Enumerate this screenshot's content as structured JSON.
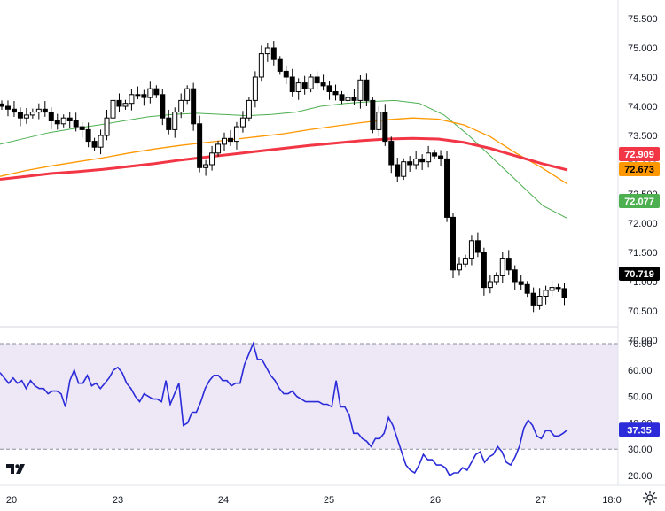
{
  "brand": "TV",
  "time_axis": {
    "labels": [
      "20",
      "23",
      "24",
      "25",
      "26",
      "27",
      "18:0"
    ]
  },
  "settings_icon": "gear-icon",
  "colors": {
    "bull": "#ffffff",
    "bear": "#000000",
    "ma_fast": "#4caf50",
    "ma_mid": "#ff9800",
    "ma_slow": "#f23645",
    "rsi": "#2b2bd9",
    "rsi_band": "#ede7f6",
    "last_price": "#000000"
  },
  "chart_data": [
    {
      "type": "candlestick",
      "title": "",
      "ylim": [
        69.8,
        75.7
      ],
      "y_ticks": [
        "75.500",
        "75.000",
        "74.500",
        "74.000",
        "73.500",
        "73.000",
        "72.500",
        "72.000",
        "71.500",
        "71.000",
        "70.500",
        "70.000"
      ],
      "x_labels": [
        "20",
        "23",
        "24",
        "25",
        "26",
        "27",
        "18:0"
      ],
      "grid": false,
      "legend": "none",
      "candles_close": [
        74.0,
        73.95,
        73.9,
        73.8,
        73.85,
        73.9,
        73.95,
        73.9,
        73.75,
        73.7,
        73.8,
        73.75,
        73.65,
        73.6,
        73.4,
        73.3,
        73.5,
        73.8,
        74.1,
        74.0,
        74.05,
        74.2,
        74.2,
        74.15,
        74.3,
        74.2,
        73.8,
        73.6,
        73.9,
        74.1,
        74.3,
        73.7,
        72.95,
        73.0,
        73.2,
        73.35,
        73.45,
        73.4,
        73.65,
        73.8,
        74.1,
        74.5,
        74.9,
        75.0,
        74.8,
        74.6,
        74.5,
        74.25,
        74.4,
        74.3,
        74.5,
        74.4,
        74.35,
        74.25,
        74.2,
        74.1,
        74.15,
        74.1,
        74.45,
        74.1,
        73.6,
        73.9,
        73.4,
        73.0,
        72.8,
        73.05,
        73.0,
        73.1,
        73.05,
        73.2,
        73.15,
        73.1,
        72.1,
        71.2,
        71.3,
        71.4,
        71.7,
        71.5,
        70.9,
        71.0,
        71.1,
        71.4,
        71.2,
        71.0,
        70.95,
        70.8,
        70.6,
        70.75,
        70.85,
        70.9,
        70.88,
        70.72
      ],
      "series": [
        {
          "name": "",
          "color": "#4caf50",
          "values": [
            73.35,
            73.45,
            73.55,
            73.62,
            73.68,
            73.75,
            73.82,
            73.86,
            73.88,
            73.86,
            73.84,
            73.86,
            73.9,
            74.0,
            74.05,
            74.08,
            74.1,
            74.05,
            73.85,
            73.5,
            73.1,
            72.7,
            72.3,
            72.08
          ]
        },
        {
          "name": "",
          "color": "#ff9800",
          "values": [
            72.8,
            72.9,
            72.98,
            73.05,
            73.12,
            73.2,
            73.27,
            73.33,
            73.38,
            73.43,
            73.48,
            73.53,
            73.6,
            73.66,
            73.72,
            73.77,
            73.8,
            73.78,
            73.68,
            73.48,
            73.2,
            72.95,
            72.67
          ]
        },
        {
          "name": "",
          "color": "#f23645",
          "values": [
            72.75,
            72.8,
            72.85,
            72.88,
            72.92,
            72.97,
            73.02,
            73.08,
            73.13,
            73.18,
            73.23,
            73.28,
            73.33,
            73.37,
            73.41,
            73.44,
            73.45,
            73.44,
            73.38,
            73.28,
            73.15,
            73.02,
            72.91
          ]
        }
      ],
      "badges": [
        {
          "label": "72.909",
          "value": 72.909,
          "bg": "#f23645",
          "fg": "#ffffff"
        },
        {
          "label": "72.673",
          "value": 72.673,
          "bg": "#ff9800",
          "fg": "#000000"
        },
        {
          "label": "72.077",
          "value": 72.077,
          "bg": "#4caf50",
          "fg": "#ffffff"
        },
        {
          "label": "70.719",
          "value": 70.719,
          "bg": "#000000",
          "fg": "#ffffff"
        }
      ]
    },
    {
      "type": "line",
      "title": "",
      "ylim": [
        17,
        72
      ],
      "y_ticks": [
        "70.00",
        "60.00",
        "50.00",
        "40.00",
        "30.00",
        "20.00"
      ],
      "bands": [
        30,
        70
      ],
      "grid": false,
      "legend": "none",
      "series": [
        {
          "name": "",
          "color": "#2b2bd9",
          "values": [
            59,
            57,
            55,
            57,
            55,
            56,
            53,
            56,
            54,
            53,
            53,
            51,
            52,
            52,
            51,
            46,
            56,
            60,
            55,
            55,
            58,
            54,
            55,
            53,
            55,
            57,
            60,
            61,
            59,
            55,
            53,
            50,
            48,
            51,
            50,
            49,
            49,
            48,
            56,
            47,
            51,
            55,
            39,
            40,
            44,
            44,
            48,
            53,
            56,
            58,
            58,
            56,
            56,
            54,
            55,
            55,
            62,
            66,
            70,
            64,
            64,
            61,
            58,
            56,
            53,
            51,
            51,
            52,
            50,
            49,
            48,
            48,
            48,
            48,
            47,
            47,
            46,
            56,
            46,
            46,
            43,
            36,
            36,
            34,
            33,
            31,
            34,
            34,
            36,
            42,
            39,
            34,
            29,
            24,
            22,
            21,
            24,
            28,
            26,
            26,
            24,
            24,
            23,
            20,
            21,
            21,
            23,
            22,
            25,
            28,
            29,
            25,
            27,
            28,
            31,
            29,
            25,
            24,
            27,
            31,
            38,
            41,
            39,
            35,
            34,
            37,
            37,
            35,
            35,
            36,
            37.35
          ]
        }
      ],
      "badges": [
        {
          "label": "37.35",
          "value": 37.35,
          "bg": "#2b2bd9",
          "fg": "#ffffff"
        }
      ]
    }
  ]
}
